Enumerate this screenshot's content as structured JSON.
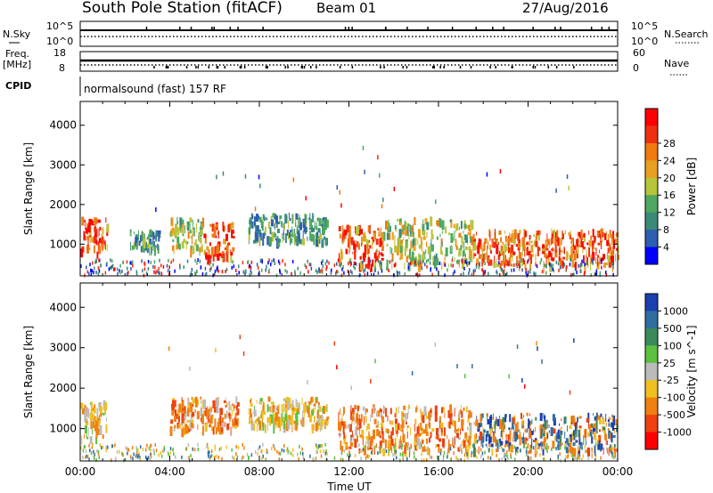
{
  "header": {
    "title": "South Pole Station (fitACF)",
    "beam": "Beam 01",
    "date": "27/Aug/2016"
  },
  "strip_labels": {
    "nsky": "N.Sky",
    "nsky_top": "10^5",
    "nsky_bottom": "10^0",
    "freq_line1": "Freq.",
    "freq_line2": "[MHz]",
    "freq_top": "18",
    "freq_bottom": "8",
    "cpid": "CPID",
    "nsearch": "N.Search",
    "nsearch_top": "10^5",
    "nsearch_bottom": "10^0",
    "nave": "Nave",
    "nave_top": "60",
    "nave_bottom": "0",
    "cpid_text": "normalsound (fast) 157 RF"
  },
  "chart_data": [
    {
      "type": "heatmap",
      "name": "power",
      "ylabel": "Slant Range [km]",
      "y_ticks": [
        1000,
        2000,
        3000,
        4000
      ],
      "ylim": [
        200,
        4600
      ],
      "xlim": [
        0,
        24
      ],
      "colorbar": {
        "label": "Power [dB]",
        "ticks": [
          "4",
          "8",
          "12",
          "16",
          "20",
          "24",
          "28"
        ],
        "colors": [
          "#0000ff",
          "#2d5fb0",
          "#3a8a7a",
          "#4fa860",
          "#b7c43a",
          "#e8a020",
          "#f07a10",
          "#ee3010",
          "#ff0000"
        ]
      },
      "echo_regions": [
        {
          "t": [
            0.0,
            1.2
          ],
          "r": [
            800,
            1700
          ],
          "level": "high"
        },
        {
          "t": [
            2.2,
            3.5
          ],
          "r": [
            900,
            1400
          ],
          "level": "low"
        },
        {
          "t": [
            4.0,
            5.5
          ],
          "r": [
            900,
            1700
          ],
          "level": "mid"
        },
        {
          "t": [
            5.5,
            6.8
          ],
          "r": [
            700,
            1600
          ],
          "level": "high"
        },
        {
          "t": [
            7.5,
            11.0
          ],
          "r": [
            1100,
            1800
          ],
          "level": "low"
        },
        {
          "t": [
            11.5,
            13.5
          ],
          "r": [
            500,
            1500
          ],
          "level": "high"
        },
        {
          "t": [
            13.5,
            17.5
          ],
          "r": [
            500,
            1700
          ],
          "level": "mid"
        },
        {
          "t": [
            17.5,
            24.0
          ],
          "r": [
            500,
            1400
          ],
          "level": "high"
        }
      ]
    },
    {
      "type": "heatmap",
      "name": "velocity",
      "xlabel": "Time UT",
      "ylabel": "Slant Range [km]",
      "x_ticks": [
        "00:00",
        "04:00",
        "08:00",
        "12:00",
        "16:00",
        "20:00",
        "00:00"
      ],
      "y_ticks": [
        1000,
        2000,
        3000,
        4000
      ],
      "ylim": [
        200,
        4600
      ],
      "xlim": [
        0,
        24
      ],
      "colorbar": {
        "label": "Velocity [m s^-1]",
        "ticks": [
          "1000",
          "500",
          "100",
          "25",
          "-25",
          "-100",
          "-500",
          "-1000"
        ],
        "colors": [
          "#1a3fb0",
          "#2e6fa0",
          "#3b8a5a",
          "#5cc040",
          "#bbbbbb",
          "#f0c020",
          "#f08010",
          "#ee4010",
          "#ff0000"
        ]
      },
      "echo_regions": [
        {
          "t": [
            0.0,
            1.2
          ],
          "r": [
            800,
            1700
          ],
          "level": "neg"
        },
        {
          "t": [
            4.0,
            7.0
          ],
          "r": [
            1000,
            1800
          ],
          "level": "strongneg"
        },
        {
          "t": [
            7.5,
            11.0
          ],
          "r": [
            1100,
            1800
          ],
          "level": "neg"
        },
        {
          "t": [
            11.5,
            17.5
          ],
          "r": [
            500,
            1600
          ],
          "level": "strongneg"
        },
        {
          "t": [
            17.5,
            24.0
          ],
          "r": [
            500,
            1400
          ],
          "level": "mixed"
        }
      ]
    }
  ]
}
